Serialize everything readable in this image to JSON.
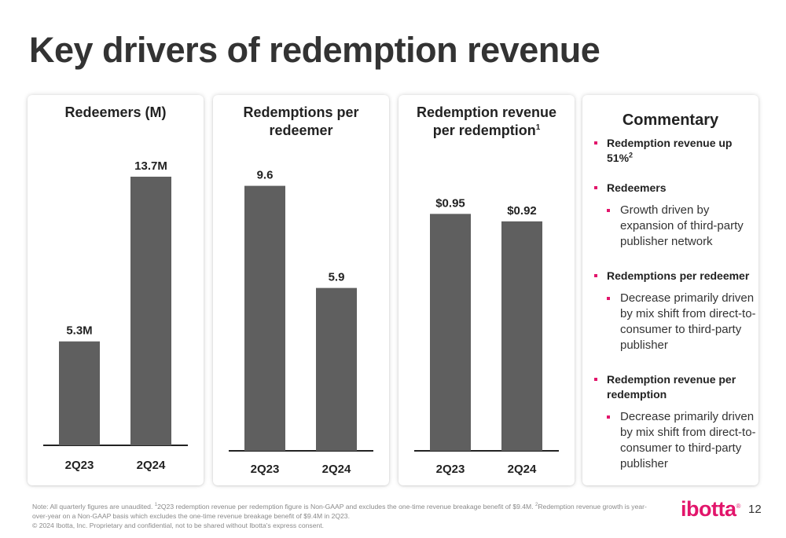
{
  "slide": {
    "title": "Key drivers of redemption revenue",
    "page_number": "12",
    "logo_text": "ibotta"
  },
  "chart_data": [
    {
      "type": "bar",
      "title": "Redeemers (M)",
      "categories": [
        "2Q23",
        "2Q24"
      ],
      "values": [
        5.3,
        13.7
      ],
      "data_labels": [
        "5.3M",
        "13.7M"
      ],
      "bar_color": "#5f5f5f"
    },
    {
      "type": "bar",
      "title": "Redemptions per redeemer",
      "categories": [
        "2Q23",
        "2Q24"
      ],
      "values": [
        9.6,
        5.9
      ],
      "data_labels": [
        "9.6",
        "5.9"
      ],
      "bar_color": "#5f5f5f"
    },
    {
      "type": "bar",
      "title": "Redemption revenue per redemption",
      "title_superscript": "1",
      "categories": [
        "2Q23",
        "2Q24"
      ],
      "values": [
        0.95,
        0.92
      ],
      "data_labels": [
        "$0.95",
        "$0.92"
      ],
      "bar_color": "#5f5f5f"
    }
  ],
  "commentary": {
    "title": "Commentary",
    "items": [
      {
        "label": "Redemption revenue up 51%",
        "sup": "2",
        "sub": null
      },
      {
        "label": "Redeemers",
        "sup": "",
        "sub": "Growth driven by expansion of third-party publisher network"
      },
      {
        "label": "Redemptions per redeemer",
        "sup": "",
        "sub": "Decrease primarily driven by mix shift from direct-to-consumer to third-party publisher"
      },
      {
        "label": "Redemption revenue per redemption",
        "sup": "",
        "sub": "Decrease primarily driven by mix shift from direct-to-consumer to third-party publisher"
      }
    ]
  },
  "footnote": {
    "note_a": "Note: All quarterly figures are unaudited. ",
    "sup1": "1",
    "note_b": "2Q23 redemption revenue per redemption figure is Non-GAAP and excludes the one-time revenue breakage benefit of $9.4M. ",
    "sup2": "2",
    "note_c": "Redemption revenue growth is year-over-year on a Non-GAAP basis which excludes the one-time revenue breakage benefit of $9.4M in 2Q23.",
    "copyright": "© 2024 Ibotta, Inc. Proprietary and confidential, not to be shared without Ibotta's express consent."
  },
  "colors": {
    "accent": "#e2156b",
    "bar": "#5f5f5f",
    "baseline": "#222222"
  }
}
